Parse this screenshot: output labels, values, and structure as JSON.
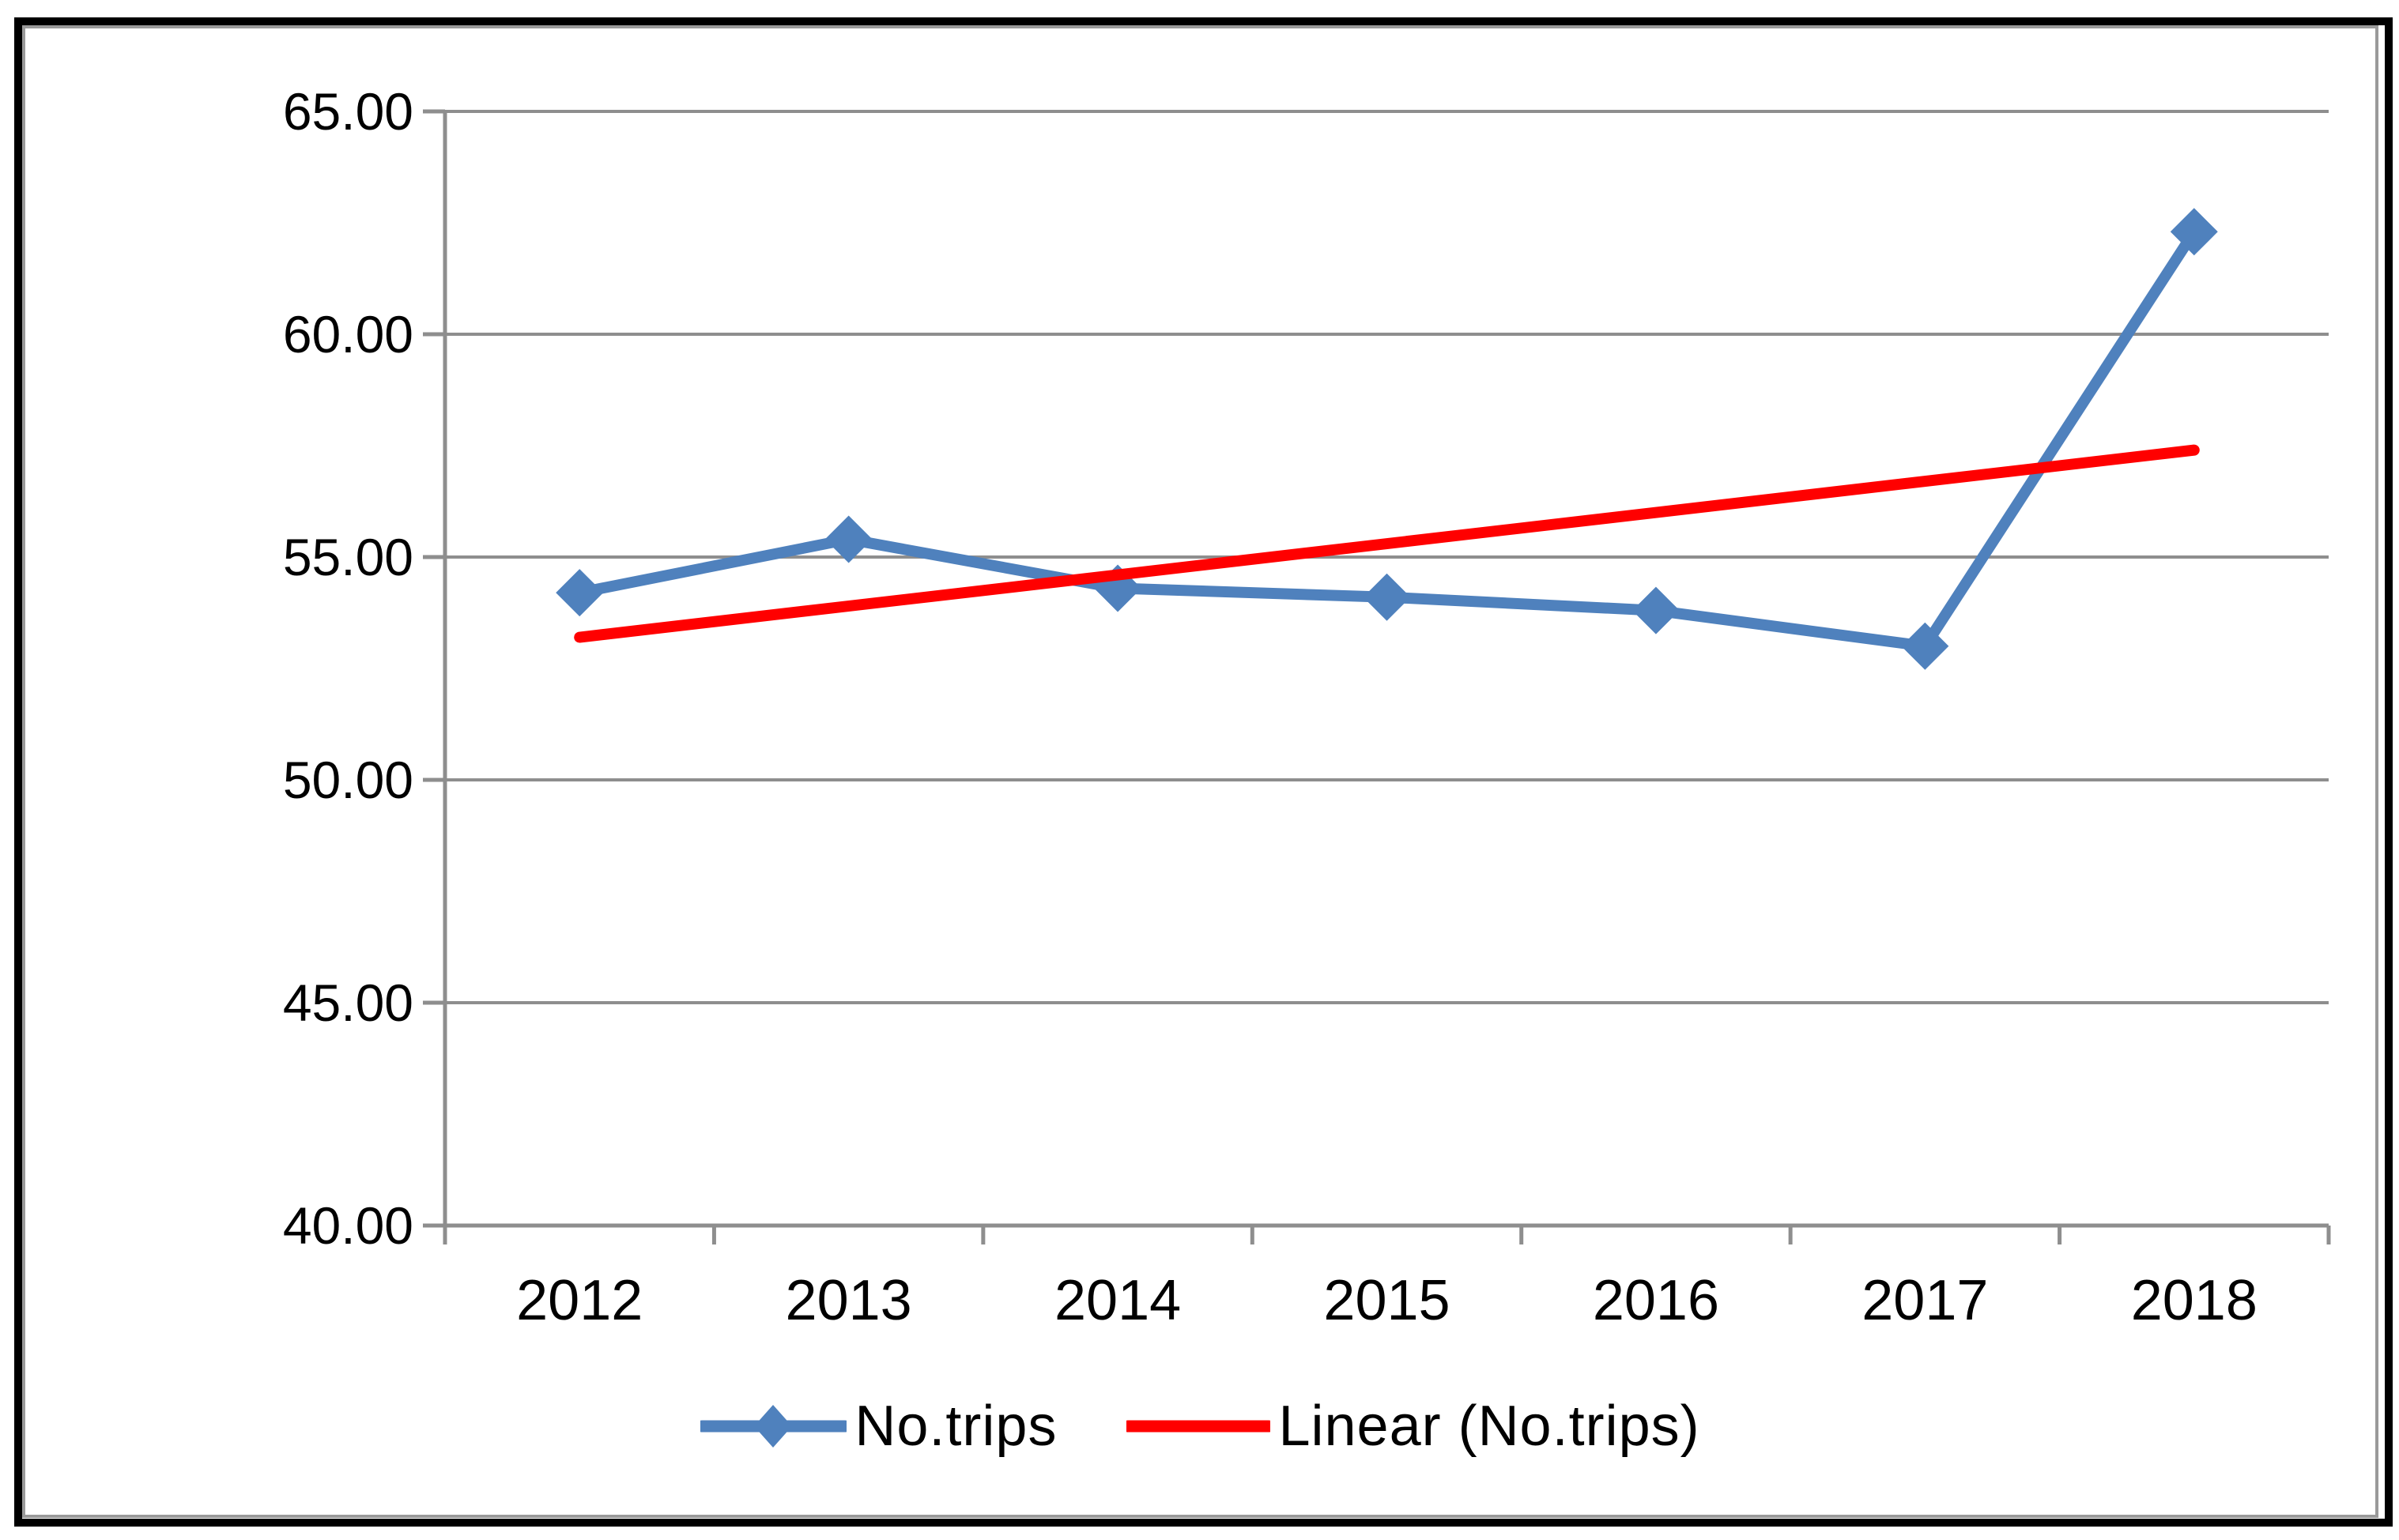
{
  "chart_data": {
    "type": "line",
    "title": "",
    "categories": [
      "2012",
      "2013",
      "2014",
      "2015",
      "2016",
      "2017",
      "2018"
    ],
    "series": [
      {
        "name": "No.trips",
        "kind": "data-line",
        "marker": "diamond",
        "color": "#4F81BD",
        "values": [
          54.2,
          55.4,
          54.3,
          54.1,
          53.8,
          53.0,
          62.3
        ]
      },
      {
        "name": "Linear (No.trips)",
        "kind": "linear-trendline",
        "color": "#FF0000",
        "endpoint_values": [
          53.2,
          57.4
        ]
      }
    ],
    "y_axis": {
      "min": 40,
      "max": 65,
      "step": 5,
      "tick_labels": [
        "65.00",
        "60.00",
        "55.00",
        "50.00",
        "45.00",
        "40.00"
      ]
    },
    "x_axis": {
      "tick_labels": [
        "2012",
        "2013",
        "2014",
        "2015",
        "2016",
        "2017",
        "2018"
      ]
    },
    "legend": {
      "position": "bottom",
      "entries": [
        {
          "label": "No.trips"
        },
        {
          "label": "Linear (No.trips)"
        }
      ]
    },
    "grid": true,
    "ylim": [
      40,
      65
    ]
  },
  "colors": {
    "series_line": "#4F81BD",
    "trendline": "#FF0000",
    "gridline": "#8E8E8E",
    "axis": "#8E8E8E",
    "text": "#000000",
    "outer_border": "#000000",
    "inner_border": "#9A9A9A",
    "background": "#FFFFFF"
  }
}
